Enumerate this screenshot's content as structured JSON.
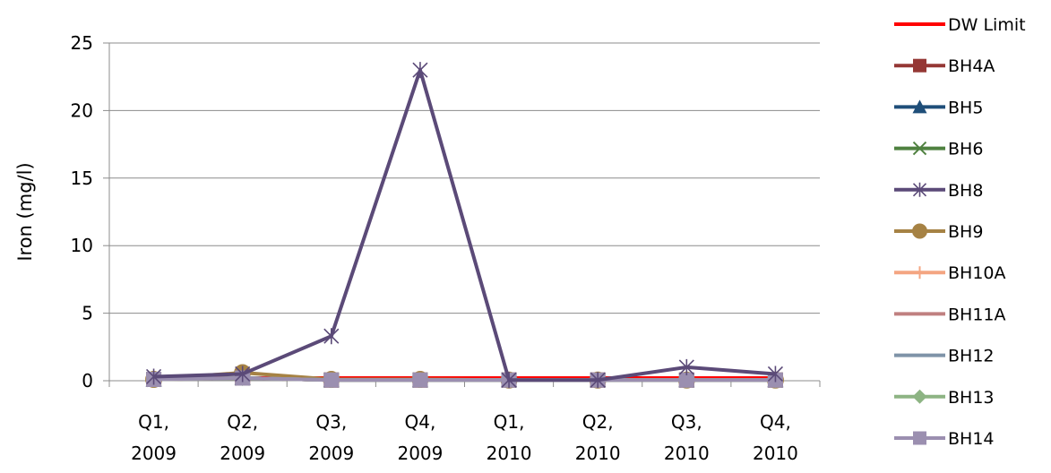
{
  "chart_data": {
    "type": "line",
    "title": "",
    "xlabel": "",
    "ylabel": "Iron (mg/l)",
    "ylim": [
      0,
      25
    ],
    "yticks": [
      0,
      5,
      10,
      15,
      20,
      25
    ],
    "grid": true,
    "legend_position": "right",
    "categories": [
      [
        "Q1,",
        "2009"
      ],
      [
        "Q2,",
        "2009"
      ],
      [
        "Q3,",
        "2009"
      ],
      [
        "Q4,",
        "2009"
      ],
      [
        "Q1,",
        "2010"
      ],
      [
        "Q2,",
        "2010"
      ],
      [
        "Q3,",
        "2010"
      ],
      [
        "Q4,",
        "2010"
      ]
    ],
    "series": [
      {
        "name": "DW Limit",
        "color": "#ff0000",
        "marker": "none",
        "values": [
          0.2,
          0.2,
          0.2,
          0.2,
          0.2,
          0.2,
          0.2,
          0.2
        ]
      },
      {
        "name": "BH4A",
        "color": "#953735",
        "marker": "square",
        "values": [
          0.1,
          0.2,
          0.05,
          0.05,
          0.05,
          0.05,
          0.05,
          0.05
        ]
      },
      {
        "name": "BH5",
        "color": "#1f4e79",
        "marker": "triangle",
        "values": [
          0.1,
          0.2,
          0.05,
          0.05,
          0.05,
          0.05,
          0.05,
          0.05
        ]
      },
      {
        "name": "BH6",
        "color": "#4f8140",
        "marker": "x",
        "values": [
          0.1,
          0.2,
          0.05,
          0.05,
          0.05,
          0.05,
          0.05,
          0.05
        ]
      },
      {
        "name": "BH8",
        "color": "#5b4a78",
        "marker": "star",
        "values": [
          0.3,
          0.5,
          3.3,
          23.0,
          0.05,
          0.05,
          1.0,
          0.5
        ]
      },
      {
        "name": "BH9",
        "color": "#a68244",
        "marker": "circle",
        "values": [
          0.1,
          0.6,
          0.1,
          0.1,
          0.05,
          0.05,
          0.05,
          0.05
        ]
      },
      {
        "name": "BH10A",
        "color": "#f4a582",
        "marker": "plus",
        "values": [
          0.1,
          0.2,
          0.05,
          0.05,
          0.05,
          0.05,
          0.05,
          0.05
        ]
      },
      {
        "name": "BH11A",
        "color": "#c08080",
        "marker": "none",
        "values": [
          0.1,
          0.2,
          0.05,
          0.05,
          0.05,
          0.05,
          0.05,
          0.05
        ]
      },
      {
        "name": "BH12",
        "color": "#7f93a8",
        "marker": "none",
        "values": [
          0.1,
          0.2,
          0.05,
          0.05,
          0.05,
          0.05,
          0.05,
          0.05
        ]
      },
      {
        "name": "BH13",
        "color": "#8db483",
        "marker": "diamond",
        "values": [
          0.1,
          0.2,
          0.05,
          0.05,
          0.05,
          0.05,
          0.05,
          0.05
        ]
      },
      {
        "name": "BH14",
        "color": "#9b8fb0",
        "marker": "square",
        "values": [
          0.1,
          0.2,
          0.05,
          0.05,
          0.05,
          0.05,
          0.05,
          0.05
        ]
      }
    ]
  }
}
